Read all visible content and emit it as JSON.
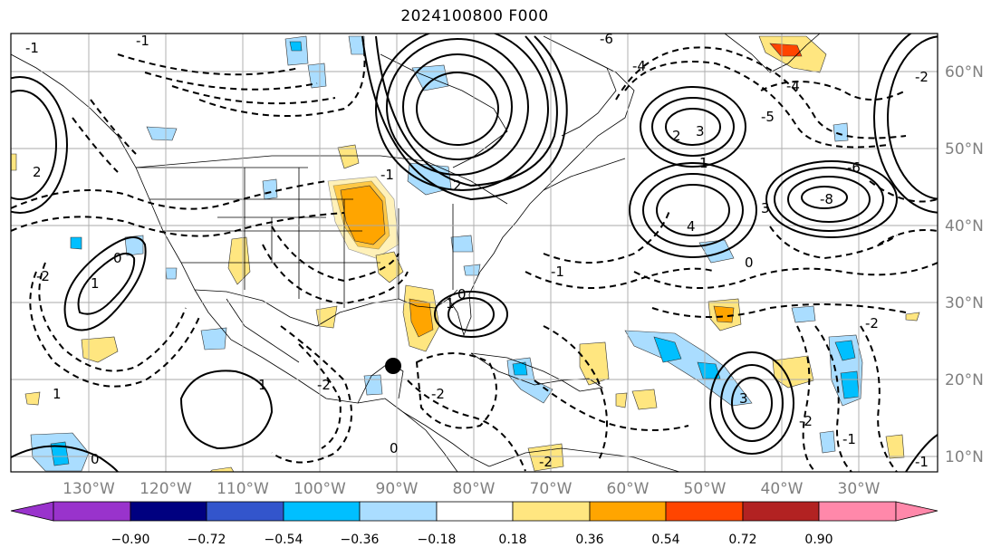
{
  "title": "2024100800 F000",
  "lon_labels": [
    "130°W",
    "120°W",
    "110°W",
    "100°W",
    "90°W",
    "80°W",
    "70°W",
    "60°W",
    "50°W",
    "40°W",
    "30°W"
  ],
  "lat_labels": [
    "60°N",
    "50°N",
    "40°N",
    "30°N",
    "20°N",
    "10°N"
  ],
  "colorbar": {
    "ticks": [
      "−0.90",
      "−0.72",
      "−0.54",
      "−0.36",
      "−0.18",
      "0.18",
      "0.36",
      "0.54",
      "0.72",
      "0.90"
    ],
    "colors": [
      "#9933cc",
      "#000080",
      "#3355cc",
      "#00bfff",
      "#aaddff",
      "#ffffff",
      "#ffe680",
      "#ffa500",
      "#ff4500",
      "#b22222",
      "#ff88aa"
    ]
  },
  "contour_labels": [
    "-1",
    "-1",
    "-2",
    "1",
    "0",
    "-6",
    "-4",
    "-4",
    "-2",
    "-5",
    "-6",
    "2",
    "1",
    "0",
    "-1",
    "-2",
    "3",
    "1",
    "4",
    "3",
    "-8",
    "-1",
    "-2",
    "2",
    "1",
    "0",
    "-2",
    "-2",
    "0",
    "-1",
    "2",
    "-2",
    "1",
    "3",
    "0",
    "-1"
  ],
  "fill_colors": {
    "neg_light": "#aaddff",
    "neg_mid": "#00bfff",
    "pos_light": "#ffe680",
    "pos_mid": "#ffa500",
    "pos_strong": "#ff4500"
  }
}
